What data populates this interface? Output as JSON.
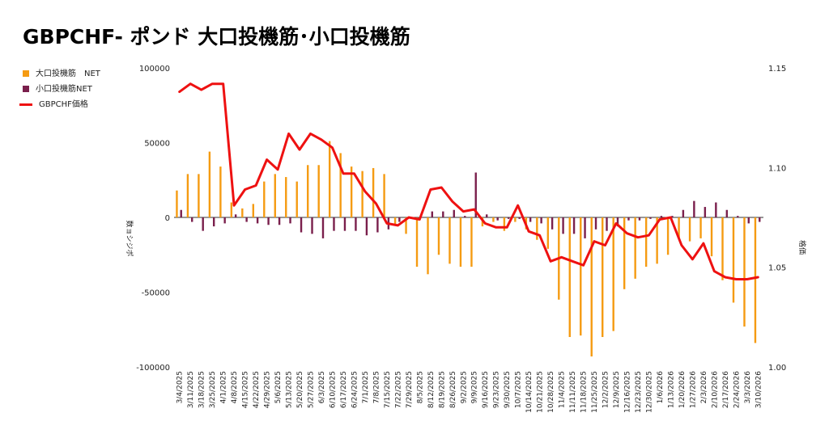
{
  "title": "GBPCHF- ポンド 大口投機筋･小口投機筋",
  "legend": {
    "large": {
      "label": "大口投機筋　NET",
      "color": "#f59b12"
    },
    "small": {
      "label": "小口投機筋NET",
      "color": "#7a1f4c"
    },
    "price": {
      "label": "GBPCHF価格",
      "color": "#ee1111"
    }
  },
  "chart_data": {
    "type": "bar+line",
    "ylabel_left": "数ョシジポ",
    "ylabel_right": "格価",
    "y_left": {
      "min": -100000,
      "max": 100000,
      "ticks": [
        100000,
        50000,
        0,
        -50000,
        -100000
      ]
    },
    "y_right": {
      "min": 1.0,
      "max": 1.15,
      "ticks": [
        "1.15",
        "1.10",
        "1.05",
        "1.00"
      ]
    },
    "x_tick_labels": [
      "3/4/2025",
      "3/11/2025",
      "3/18/2025",
      "3/25/2025",
      "4/1/2025",
      "4/8/2025",
      "4/15/2025",
      "4/22/2025",
      "4/29/2025",
      "5/6/2025",
      "5/13/2025",
      "5/20/2025",
      "5/27/2025",
      "6/3/2025",
      "6/10/2025",
      "6/17/2025",
      "6/24/2025",
      "7/1/2025",
      "7/8/2025",
      "7/15/2025",
      "7/22/2025",
      "7/29/2025",
      "8/5/2025",
      "8/12/2025",
      "8/19/2025",
      "8/26/2025",
      "9/2/2025",
      "9/9/2025",
      "9/16/2025",
      "9/23/2025",
      "9/30/2025",
      "10/7/2025",
      "10/14/2025",
      "10/21/2025",
      "10/28/2025",
      "11/4/2025",
      "11/11/2025",
      "11/18/2025",
      "11/25/2025",
      "12/2/2025",
      "12/9/2025",
      "12/16/2025",
      "12/23/2025",
      "12/30/2025",
      "1/6/2026",
      "1/13/2026",
      "1/20/2026",
      "1/27/2026",
      "2/3/2026",
      "2/10/2026",
      "2/17/2026",
      "2/24/2026",
      "3/3/2026",
      "3/10/2026"
    ],
    "series": [
      {
        "name": "大口投機筋　NET",
        "type": "bar",
        "axis": "left",
        "values": [
          18000,
          29000,
          29000,
          44000,
          34000,
          10000,
          6000,
          9000,
          24000,
          29000,
          27000,
          24000,
          35000,
          35000,
          51000,
          43000,
          34000,
          31000,
          33000,
          29000,
          -5000,
          -11000,
          -33000,
          -38000,
          -25000,
          -31000,
          -33000,
          -33000,
          -6000,
          -3000,
          -9000,
          -3000,
          -8000,
          -15000,
          -21000,
          -55000,
          -80000,
          -79000,
          -93000,
          -80000,
          -76000,
          -48000,
          -41000,
          -33000,
          -31000,
          -25000,
          -14000,
          -16000,
          -14000,
          -26000,
          -42000,
          -57000,
          -73000,
          -84000
        ]
      },
      {
        "name": "小口投機筋NET",
        "type": "bar",
        "axis": "left",
        "values": [
          5000,
          -3000,
          -9000,
          -6000,
          -4000,
          2000,
          -3000,
          -4000,
          -5000,
          -5000,
          -4000,
          -10000,
          -11000,
          -14000,
          -9000,
          -9000,
          -9000,
          -12000,
          -10000,
          -8000,
          -3000,
          0,
          0,
          4000,
          4000,
          5000,
          1000,
          30000,
          2000,
          -2000,
          -1000,
          -1000,
          -3000,
          -4000,
          -8000,
          -11000,
          -11000,
          -14000,
          -8000,
          -9000,
          -6000,
          -2000,
          -2000,
          -1000,
          1000,
          1000,
          5000,
          11000,
          7000,
          10000,
          5000,
          1000,
          -4000,
          -3000
        ]
      },
      {
        "name": "GBPCHF価格",
        "type": "line",
        "axis": "right",
        "values": [
          1.138,
          1.142,
          1.139,
          1.142,
          1.142,
          1.081,
          1.089,
          1.091,
          1.104,
          1.099,
          1.117,
          1.109,
          1.117,
          1.114,
          1.11,
          1.097,
          1.097,
          1.088,
          1.082,
          1.072,
          1.071,
          1.075,
          1.074,
          1.089,
          1.09,
          1.083,
          1.078,
          1.079,
          1.072,
          1.07,
          1.07,
          1.081,
          1.068,
          1.066,
          1.053,
          1.055,
          1.053,
          1.051,
          1.063,
          1.061,
          1.072,
          1.067,
          1.065,
          1.066,
          1.074,
          1.075,
          1.061,
          1.054,
          1.062,
          1.048,
          1.045,
          1.044,
          1.044,
          1.045
        ]
      }
    ]
  }
}
